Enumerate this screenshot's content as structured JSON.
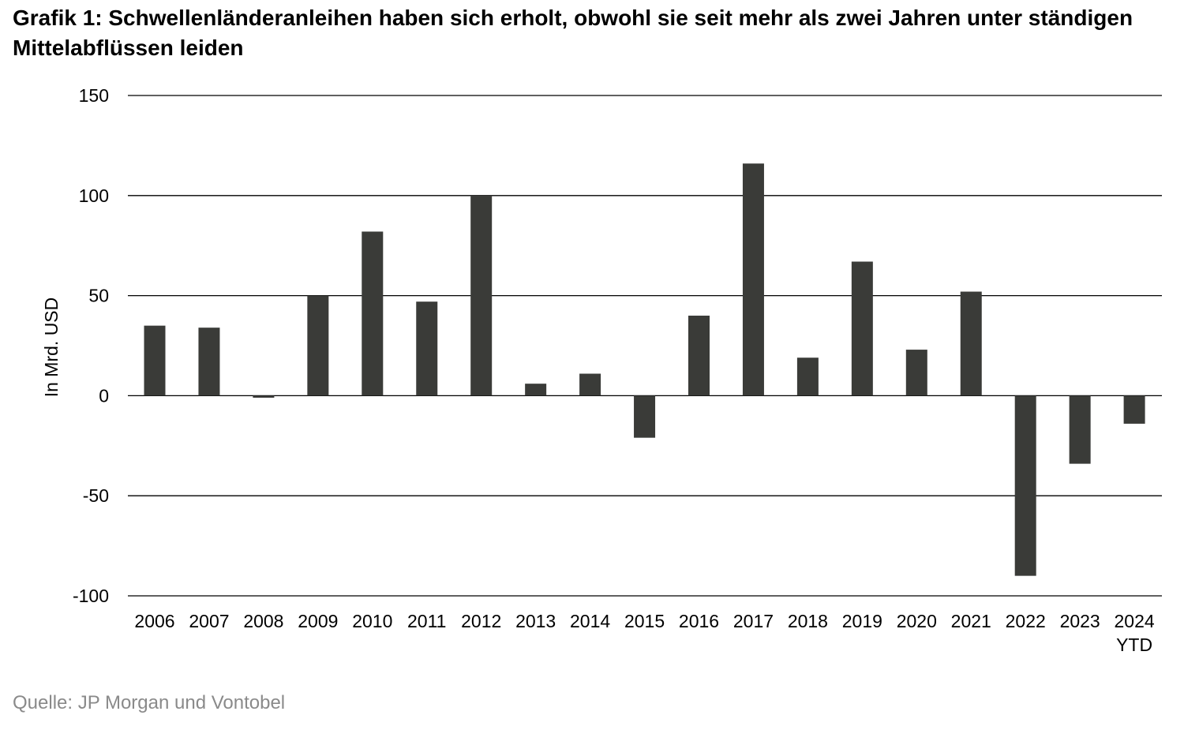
{
  "title": "Grafik 1: Schwellenländeranleihen haben sich erholt, obwohl sie seit mehr als zwei Jahren unter ständigen Mittelabflüssen leiden",
  "source": "Quelle: JP Morgan und Vontobel",
  "colors": {
    "bar": "#3a3b38",
    "grid": "#000000",
    "text": "#000000",
    "source": "#8a8a8a"
  },
  "chart_data": {
    "type": "bar",
    "title": "Grafik 1: Schwellenländeranleihen haben sich erholt, obwohl sie seit mehr als zwei Jahren unter ständigen Mittelabflüssen leiden",
    "xlabel": "",
    "ylabel": "In Mrd. USD",
    "ylim": [
      -100,
      150
    ],
    "yticks": [
      150,
      100,
      50,
      0,
      -50,
      -100
    ],
    "grid": true,
    "legend": "none",
    "categories": [
      [
        "2006"
      ],
      [
        "2007"
      ],
      [
        "2008"
      ],
      [
        "2009"
      ],
      [
        "2010"
      ],
      [
        "2011"
      ],
      [
        "2012"
      ],
      [
        "2013"
      ],
      [
        "2014"
      ],
      [
        "2015"
      ],
      [
        "2016"
      ],
      [
        "2017"
      ],
      [
        "2018"
      ],
      [
        "2019"
      ],
      [
        "2020"
      ],
      [
        "2021"
      ],
      [
        "2022"
      ],
      [
        "2023"
      ],
      [
        "2024",
        "YTD"
      ]
    ],
    "values": [
      35,
      34,
      -1,
      50,
      82,
      47,
      100,
      6,
      11,
      -21,
      40,
      116,
      19,
      67,
      23,
      52,
      -90,
      -34,
      -14
    ]
  }
}
